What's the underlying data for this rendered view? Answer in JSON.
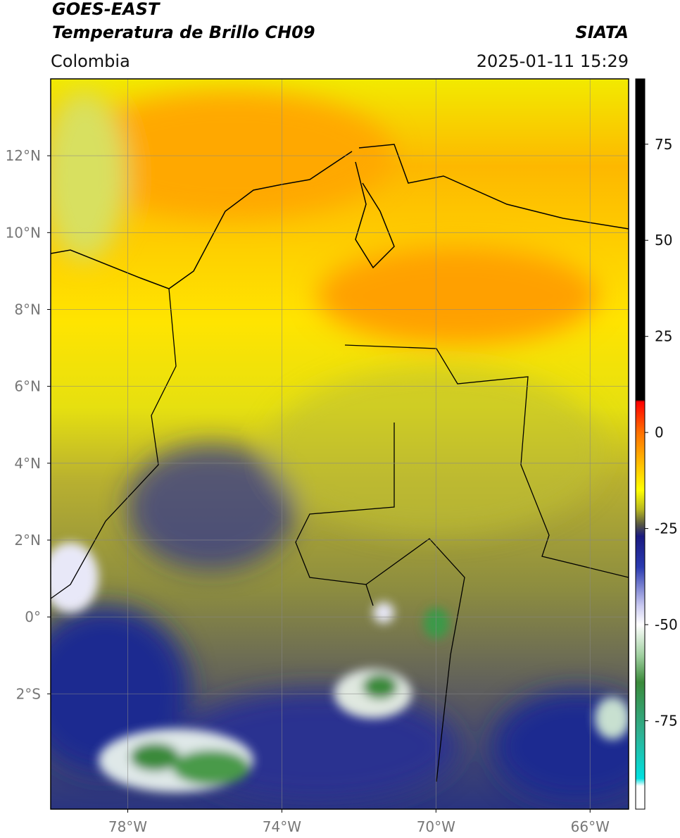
{
  "header": {
    "title_line1": "GOES-EAST",
    "title_line2": "Temperatura de Brillo CH09",
    "source": "SIATA",
    "region": "Colombia",
    "datetime": "2025-01-11 15:29"
  },
  "map": {
    "lonlim": [
      -80,
      -65
    ],
    "latlim": [
      -5,
      14
    ],
    "xticks": [
      {
        "value": -78,
        "label": "78°W"
      },
      {
        "value": -74,
        "label": "74°W"
      },
      {
        "value": -70,
        "label": "70°W"
      },
      {
        "value": -66,
        "label": "66°W"
      }
    ],
    "yticks": [
      {
        "value": 12,
        "label": "12°N"
      },
      {
        "value": 10,
        "label": "10°N"
      },
      {
        "value": 8,
        "label": "8°N"
      },
      {
        "value": 6,
        "label": "6°N"
      },
      {
        "value": 4,
        "label": "4°N"
      },
      {
        "value": 2,
        "label": "2°N"
      },
      {
        "value": 0,
        "label": "0°"
      },
      {
        "value": -2,
        "label": "2°S"
      }
    ],
    "grid": true
  },
  "colorbar": {
    "clim": [
      -98,
      92
    ],
    "ticks": [
      75,
      50,
      25,
      0,
      -25,
      -50,
      -75
    ],
    "stops": [
      {
        "value": 92,
        "color": "#000000"
      },
      {
        "value": 8.5,
        "color": "#000000"
      },
      {
        "value": 8,
        "color": "#ff0000"
      },
      {
        "value": 0,
        "color": "#ff7000"
      },
      {
        "value": -10,
        "color": "#ffd000"
      },
      {
        "value": -15,
        "color": "#ffff00"
      },
      {
        "value": -20,
        "color": "#b8b820"
      },
      {
        "value": -24,
        "color": "#555544"
      },
      {
        "value": -27,
        "color": "#1a1a80"
      },
      {
        "value": -35,
        "color": "#2a3ab0"
      },
      {
        "value": -45,
        "color": "#c8c8f0"
      },
      {
        "value": -50,
        "color": "#ffffff"
      },
      {
        "value": -58,
        "color": "#a0d0a0"
      },
      {
        "value": -65,
        "color": "#3a8a3a"
      },
      {
        "value": -78,
        "color": "#30b090"
      },
      {
        "value": -90,
        "color": "#00e0e0"
      },
      {
        "value": -92,
        "color": "#ffffff"
      },
      {
        "value": -98,
        "color": "#ffffff"
      }
    ]
  }
}
